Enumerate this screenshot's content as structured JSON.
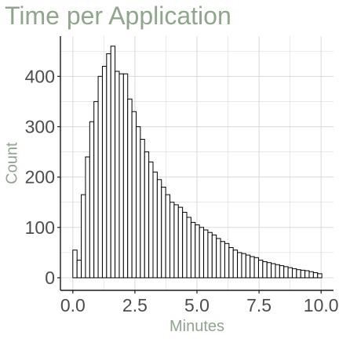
{
  "colors": {
    "title": "#8fa58c",
    "axis_title": "#8fa58c",
    "tick_label": "#4d4d4d",
    "axis_line": "#1a1a1a",
    "grid": "#d9d9d9",
    "bar_fill": "#ffffff",
    "bar_stroke": "#000000",
    "background": "#ffffff"
  },
  "chart_data": {
    "type": "bar",
    "title": "Time per Application",
    "xlabel": "Minutes",
    "ylabel": "Count",
    "xlim": [
      -0.5,
      10.5
    ],
    "ylim": [
      -25,
      480
    ],
    "x_ticks": [
      0.0,
      2.5,
      5.0,
      7.5,
      10.0
    ],
    "x_tick_labels": [
      "0.0",
      "2.5",
      "5.0",
      "7.5",
      "10.0"
    ],
    "y_ticks": [
      0,
      100,
      200,
      300,
      400
    ],
    "y_tick_labels": [
      "0",
      "100",
      "200",
      "300",
      "400"
    ],
    "grid": true,
    "legend": "none",
    "bin_width": 0.17,
    "bin_start": 0.0,
    "values": [
      55,
      35,
      165,
      240,
      310,
      350,
      400,
      420,
      445,
      460,
      410,
      405,
      405,
      355,
      330,
      300,
      275,
      250,
      230,
      210,
      195,
      180,
      165,
      150,
      145,
      140,
      130,
      120,
      110,
      105,
      100,
      95,
      90,
      85,
      78,
      72,
      68,
      60,
      55,
      50,
      48,
      45,
      42,
      40,
      35,
      32,
      30,
      28,
      26,
      24,
      22,
      20,
      18,
      16,
      15,
      14,
      12,
      10,
      8
    ]
  }
}
